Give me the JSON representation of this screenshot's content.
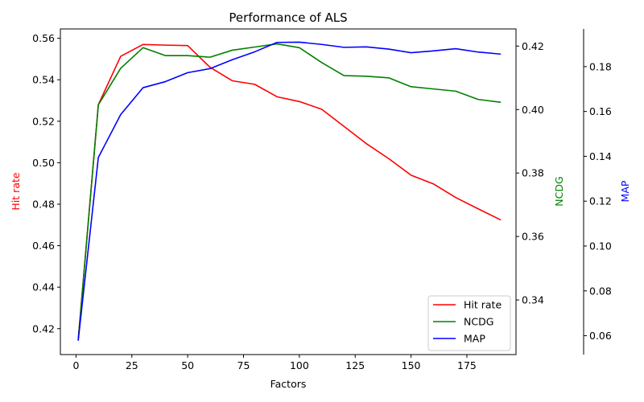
{
  "chart_data": {
    "type": "line",
    "title": "Performance of ALS",
    "xlabel": "Factors",
    "x": [
      1,
      10,
      20,
      30,
      40,
      50,
      60,
      70,
      80,
      90,
      100,
      110,
      120,
      130,
      140,
      150,
      160,
      170,
      180,
      190
    ],
    "xlim": [
      -7,
      197
    ],
    "xticks": [
      0,
      25,
      50,
      75,
      100,
      125,
      150,
      175
    ],
    "axes": [
      {
        "id": "hit",
        "label": "Hit rate",
        "color": "#ff0000",
        "position": "left",
        "ylim": [
          0.4075,
          0.5645
        ],
        "ticks": [
          0.42,
          0.44,
          0.46,
          0.48,
          0.5,
          0.52,
          0.54,
          0.56
        ],
        "tick_labels": [
          "0.42",
          "0.44",
          "0.46",
          "0.48",
          "0.50",
          "0.52",
          "0.54",
          "0.56"
        ]
      },
      {
        "id": "ncdg",
        "label": "NCDG",
        "color": "#008000",
        "position": "right",
        "ylim": [
          0.3228,
          0.4254
        ],
        "ticks": [
          0.34,
          0.36,
          0.38,
          0.4,
          0.42
        ],
        "tick_labels": [
          "0.34",
          "0.36",
          "0.38",
          "0.40",
          "0.42"
        ]
      },
      {
        "id": "map",
        "label": "MAP",
        "color": "#0000ff",
        "position": "right-outer",
        "ylim": [
          0.0516,
          0.1968
        ],
        "ticks": [
          0.06,
          0.08,
          0.1,
          0.12,
          0.14,
          0.16,
          0.18
        ],
        "tick_labels": [
          "0.06",
          "0.08",
          "0.10",
          "0.12",
          "0.14",
          "0.16",
          "0.18"
        ]
      }
    ],
    "series": [
      {
        "name": "Hit rate",
        "axis": "hit",
        "color": "#ff0000",
        "values": [
          0.415,
          0.528,
          0.5513,
          0.557,
          0.5567,
          0.5565,
          0.546,
          0.5395,
          0.5378,
          0.5318,
          0.5295,
          0.5258,
          0.5175,
          0.5092,
          0.502,
          0.494,
          0.4898,
          0.4832,
          0.4778,
          0.4725
        ]
      },
      {
        "name": "NCDG",
        "axis": "ncdg",
        "color": "#008000",
        "values": [
          0.3275,
          0.4015,
          0.413,
          0.4195,
          0.417,
          0.417,
          0.4165,
          0.4187,
          0.4197,
          0.4207,
          0.4195,
          0.4148,
          0.4107,
          0.4105,
          0.41,
          0.4072,
          0.4065,
          0.4058,
          0.4032,
          0.4023
        ]
      },
      {
        "name": "MAP",
        "axis": "map",
        "color": "#0000ff",
        "values": [
          0.058,
          0.1395,
          0.1586,
          0.1706,
          0.1733,
          0.1773,
          0.1791,
          0.1831,
          0.1866,
          0.1908,
          0.1909,
          0.1899,
          0.1886,
          0.1888,
          0.1878,
          0.1862,
          0.187,
          0.188,
          0.1865,
          0.1856
        ]
      }
    ],
    "legend": {
      "placement": "lower-right",
      "entries": [
        "Hit rate",
        "NCDG",
        "MAP"
      ]
    },
    "grid": false
  }
}
